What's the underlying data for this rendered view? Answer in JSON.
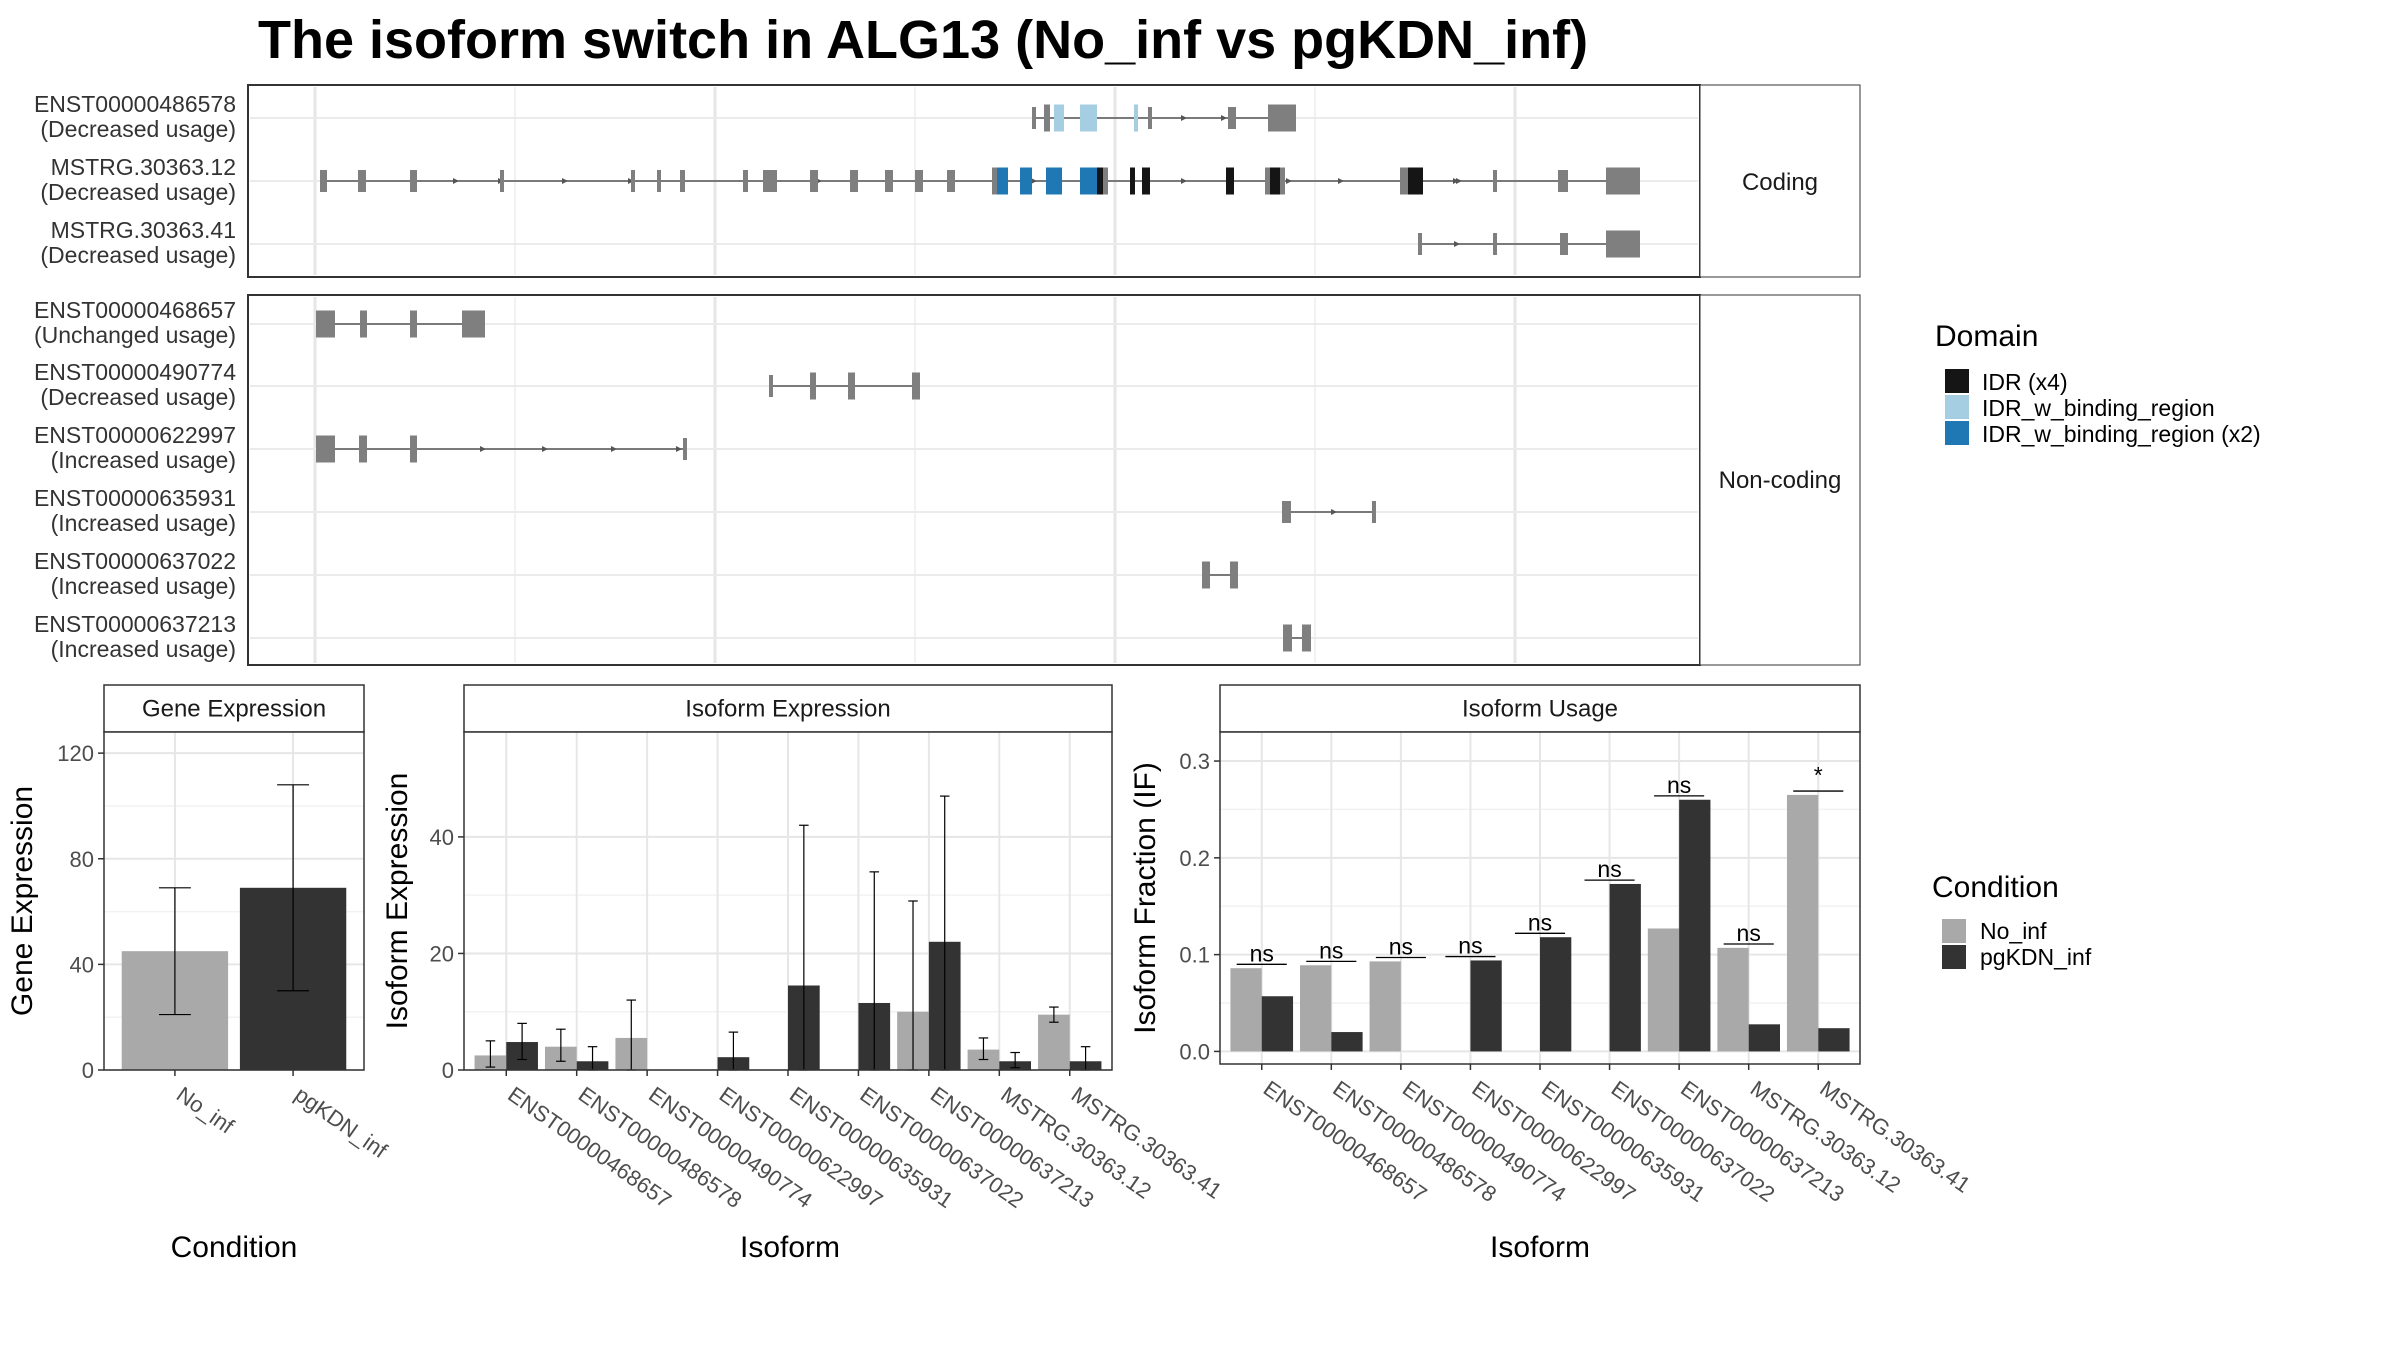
{
  "title": "The isoform switch in ALG13 (No_inf vs pgKDN_inf)",
  "structure": {
    "coding_label": "Coding",
    "noncoding_label": "Non-coding",
    "coding": [
      {
        "id": "ENST00000486578",
        "usage": "(Decreased usage)"
      },
      {
        "id": "MSTRG.30363.12",
        "usage": "(Decreased usage)"
      },
      {
        "id": "MSTRG.30363.41",
        "usage": "(Decreased usage)"
      }
    ],
    "noncoding": [
      {
        "id": "ENST00000468657",
        "usage": "(Unchanged usage)"
      },
      {
        "id": "ENST00000490774",
        "usage": "(Decreased usage)"
      },
      {
        "id": "ENST00000622997",
        "usage": "(Increased usage)"
      },
      {
        "id": "ENST00000635931",
        "usage": "(Increased usage)"
      },
      {
        "id": "ENST00000637022",
        "usage": "(Increased usage)"
      },
      {
        "id": "ENST00000637213",
        "usage": "(Increased usage)"
      }
    ]
  },
  "domain_legend": {
    "title": "Domain",
    "items": [
      {
        "label": "IDR (x4)",
        "color": "#151515"
      },
      {
        "label": "IDR_w_binding_region",
        "color": "#a6cee3"
      },
      {
        "label": "IDR_w_binding_region (x2)",
        "color": "#1f78b4"
      }
    ]
  },
  "condition_legend": {
    "title": "Condition",
    "items": [
      {
        "label": "No_inf",
        "color": "#a9a9a9"
      },
      {
        "label": "pgKDN_inf",
        "color": "#333333"
      }
    ]
  },
  "chart_data": [
    {
      "type": "bar",
      "title": "Gene Expression",
      "xlabel": "Condition",
      "ylabel": "Gene Expression",
      "categories": [
        "No_inf",
        "pgKDN_inf"
      ],
      "values": [
        45,
        69
      ],
      "error_low": [
        21,
        30
      ],
      "error_high": [
        69,
        108
      ],
      "ylim": [
        0,
        128
      ],
      "yticks": [
        0,
        40,
        80,
        120
      ],
      "grid": true
    },
    {
      "type": "bar",
      "title": "Isoform Expression",
      "xlabel": "Isoform",
      "ylabel": "Isoform Expression",
      "categories": [
        "ENST00000468657",
        "ENST00000486578",
        "ENST00000490774",
        "ENST00000622997",
        "ENST00000635931",
        "ENST00000637022",
        "ENST00000637213",
        "MSTRG.30363.12",
        "MSTRG.30363.41"
      ],
      "series": [
        {
          "name": "No_inf",
          "values": [
            2.5,
            4,
            5.5,
            0,
            0,
            0,
            10,
            3.5,
            9.5
          ],
          "error_low": [
            0.5,
            1.5,
            0,
            0,
            0,
            0,
            0,
            1.8,
            8.2
          ],
          "error_high": [
            5,
            7,
            12,
            0,
            0,
            0,
            29,
            5.5,
            10.8
          ]
        },
        {
          "name": "pgKDN_inf",
          "values": [
            4.8,
            1.5,
            0,
            2.2,
            14.5,
            11.5,
            22,
            1.5,
            1.5
          ],
          "error_low": [
            1.8,
            0,
            0,
            0,
            0,
            0,
            0,
            0.4,
            0
          ],
          "error_high": [
            8,
            4,
            0,
            6.5,
            42,
            34,
            47,
            3,
            4
          ]
        }
      ],
      "ylim": [
        0,
        58
      ],
      "yticks": [
        0,
        20,
        40
      ],
      "grid": true
    },
    {
      "type": "bar",
      "title": "Isoform Usage",
      "xlabel": "Isoform",
      "ylabel": "Isoform Fraction (IF)",
      "categories": [
        "ENST00000468657",
        "ENST00000486578",
        "ENST00000490774",
        "ENST00000622997",
        "ENST00000635931",
        "ENST00000637022",
        "ENST00000637213",
        "MSTRG.30363.12",
        "MSTRG.30363.41"
      ],
      "series": [
        {
          "name": "No_inf",
          "values": [
            0.086,
            0.089,
            0.093,
            0,
            0,
            0,
            0.127,
            0.107,
            0.265
          ]
        },
        {
          "name": "pgKDN_inf",
          "values": [
            0.057,
            0.02,
            0,
            0.094,
            0.118,
            0.173,
            0.26,
            0.028,
            0.024
          ]
        }
      ],
      "significance": [
        "ns",
        "ns",
        "ns",
        "ns",
        "ns",
        "ns",
        "ns",
        "ns",
        "*"
      ],
      "ylim": [
        -0.013,
        0.33
      ],
      "yticks": [
        0.0,
        0.1,
        0.2,
        0.3
      ],
      "grid": true
    }
  ]
}
